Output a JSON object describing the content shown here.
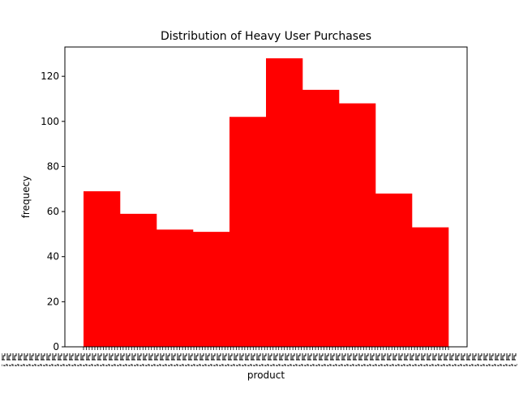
{
  "chart_data": {
    "type": "bar",
    "title": "Distribution of Heavy User Purchases",
    "xlabel": "product",
    "ylabel": "frequecy",
    "ylim": [
      0,
      133
    ],
    "yticks": [
      0,
      20,
      40,
      60,
      80,
      100,
      120
    ],
    "bins": 10,
    "values": [
      69,
      59,
      52,
      51,
      102,
      128,
      114,
      108,
      68,
      53
    ],
    "bar_color": "#ff0000",
    "grid": false,
    "x_tick_labels_overlapping": true
  }
}
